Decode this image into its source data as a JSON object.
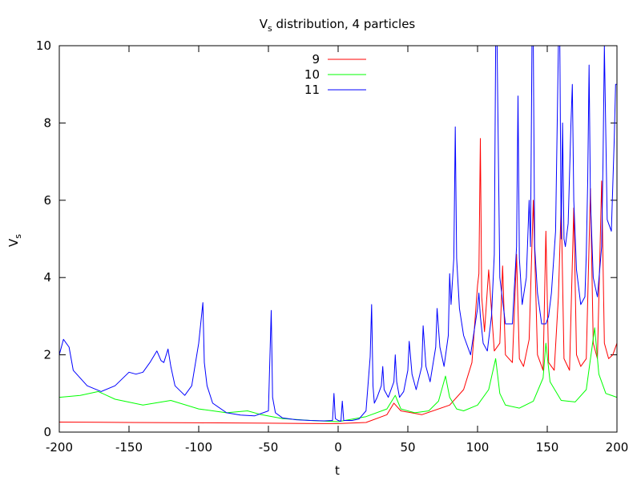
{
  "chart_data": {
    "type": "line",
    "title_main": "V",
    "title_sub": "s",
    "title_rest": " distribution, 4 particles",
    "xlabel": "t",
    "ylabel_main": "V",
    "ylabel_sub": "s",
    "xlim": [
      -200,
      200
    ],
    "ylim": [
      0,
      10
    ],
    "x_ticks": [
      -200,
      -150,
      -100,
      -50,
      0,
      50,
      100,
      150,
      200
    ],
    "y_ticks": [
      0,
      2,
      4,
      6,
      8,
      10
    ],
    "x_tick_labels": [
      "-200",
      "-150",
      "-100",
      "-50",
      "0",
      "50",
      "100",
      "150",
      "200"
    ],
    "y_tick_labels": [
      "0",
      "2",
      "4",
      "6",
      "8",
      "10"
    ],
    "grid": false,
    "legend_position": "top-center",
    "series": [
      {
        "name": "9",
        "color": "#ff0000",
        "x": [
          -200,
          -150,
          -100,
          -50,
          -10,
          0,
          20,
          35,
          40,
          45,
          60,
          80,
          90,
          96,
          100,
          101,
          102,
          103,
          105,
          108,
          112,
          116,
          118,
          120,
          125,
          128,
          130,
          133,
          137,
          140,
          143,
          147,
          149,
          151,
          155,
          158,
          160,
          162,
          166,
          169,
          171,
          174,
          178,
          181,
          183,
          186,
          189,
          191,
          194,
          197,
          200
        ],
        "y": [
          0.26,
          0.25,
          0.24,
          0.23,
          0.22,
          0.22,
          0.25,
          0.45,
          0.75,
          0.55,
          0.45,
          0.7,
          1.1,
          1.8,
          3.8,
          4.1,
          7.6,
          3.5,
          2.6,
          4.2,
          2.1,
          2.3,
          4.3,
          2.0,
          1.8,
          4.6,
          1.9,
          1.7,
          2.4,
          6.0,
          2.0,
          1.6,
          5.2,
          1.8,
          1.6,
          3.5,
          5.9,
          1.9,
          1.6,
          5.8,
          2.0,
          1.7,
          1.9,
          6.3,
          2.3,
          1.9,
          6.5,
          2.3,
          1.9,
          2.0,
          2.3
        ]
      },
      {
        "name": "10",
        "color": "#00ff00",
        "x": [
          -200,
          -185,
          -172,
          -160,
          -140,
          -120,
          -100,
          -80,
          -65,
          -55,
          -40,
          -20,
          0,
          20,
          35,
          41,
          45,
          55,
          65,
          72,
          77,
          80,
          85,
          90,
          100,
          108,
          113,
          116,
          120,
          130,
          140,
          147,
          149,
          152,
          160,
          170,
          178,
          184,
          187,
          192,
          200
        ],
        "y": [
          0.9,
          0.95,
          1.05,
          0.85,
          0.7,
          0.82,
          0.6,
          0.5,
          0.55,
          0.45,
          0.35,
          0.3,
          0.27,
          0.4,
          0.6,
          0.95,
          0.6,
          0.5,
          0.55,
          0.8,
          1.45,
          0.9,
          0.6,
          0.55,
          0.7,
          1.1,
          1.9,
          1.0,
          0.7,
          0.62,
          0.8,
          1.4,
          2.3,
          1.3,
          0.82,
          0.78,
          1.1,
          2.7,
          1.5,
          1.0,
          0.9
        ]
      },
      {
        "name": "11",
        "color": "#0000ff",
        "x": [
          -200,
          -197,
          -193,
          -190,
          -180,
          -170,
          -160,
          -150,
          -145,
          -140,
          -135,
          -130,
          -127,
          -125,
          -122,
          -120,
          -117,
          -110,
          -105,
          -100,
          -97,
          -96,
          -94,
          -90,
          -80,
          -70,
          -60,
          -50,
          -48,
          -47,
          -45,
          -40,
          -30,
          -20,
          -10,
          -4,
          -3,
          -2,
          0,
          2,
          3,
          4,
          6,
          10,
          15,
          20,
          23,
          24,
          25,
          26,
          28,
          31,
          32,
          33,
          36,
          40,
          41,
          42,
          44,
          47,
          50,
          51,
          53,
          56,
          60,
          61,
          63,
          66,
          70,
          71,
          73,
          76,
          79,
          80,
          81,
          83,
          84,
          85,
          87,
          90,
          95,
          100,
          101,
          102,
          104,
          107,
          110,
          112,
          113,
          114,
          116,
          120,
          125,
          128,
          129,
          130,
          132,
          135,
          137,
          138,
          139,
          140,
          141,
          143,
          146,
          149,
          151,
          153,
          156,
          158,
          159,
          160,
          161,
          162,
          163,
          165,
          167,
          168,
          169,
          171,
          174,
          177,
          178,
          179,
          180,
          181,
          183,
          186,
          189,
          190,
          191,
          193,
          196,
          198,
          199,
          200
        ],
        "y": [
          2.0,
          2.4,
          2.2,
          1.6,
          1.2,
          1.05,
          1.2,
          1.55,
          1.5,
          1.55,
          1.8,
          2.1,
          1.85,
          1.8,
          2.15,
          1.7,
          1.2,
          0.95,
          1.2,
          2.3,
          3.35,
          1.8,
          1.2,
          0.75,
          0.5,
          0.44,
          0.42,
          0.55,
          3.15,
          0.9,
          0.5,
          0.37,
          0.32,
          0.3,
          0.29,
          0.3,
          1.0,
          0.35,
          0.3,
          0.28,
          0.8,
          0.3,
          0.3,
          0.3,
          0.34,
          0.55,
          1.95,
          3.3,
          1.2,
          0.75,
          0.9,
          1.2,
          1.7,
          1.1,
          0.9,
          1.3,
          2.0,
          1.3,
          0.9,
          1.05,
          1.6,
          2.35,
          1.5,
          1.1,
          1.7,
          2.75,
          1.7,
          1.3,
          2.2,
          3.2,
          2.2,
          1.7,
          2.5,
          4.1,
          3.3,
          4.5,
          7.9,
          4.5,
          3.2,
          2.5,
          2.0,
          3.2,
          3.6,
          3.0,
          2.3,
          2.1,
          3.0,
          4.6,
          10.0,
          10.0,
          4.0,
          2.8,
          2.8,
          4.8,
          8.7,
          4.5,
          3.3,
          4.0,
          6.0,
          4.8,
          10.0,
          10.0,
          4.8,
          3.6,
          2.8,
          2.8,
          3.0,
          3.6,
          5.2,
          10.0,
          10.0,
          5.0,
          8.0,
          5.0,
          4.8,
          5.4,
          8.0,
          9.0,
          6.0,
          4.2,
          3.3,
          3.5,
          4.6,
          6.5,
          9.5,
          6.0,
          4.0,
          3.5,
          4.8,
          7.0,
          10.0,
          5.5,
          5.2,
          7.5,
          9.0,
          9.0
        ]
      }
    ]
  }
}
